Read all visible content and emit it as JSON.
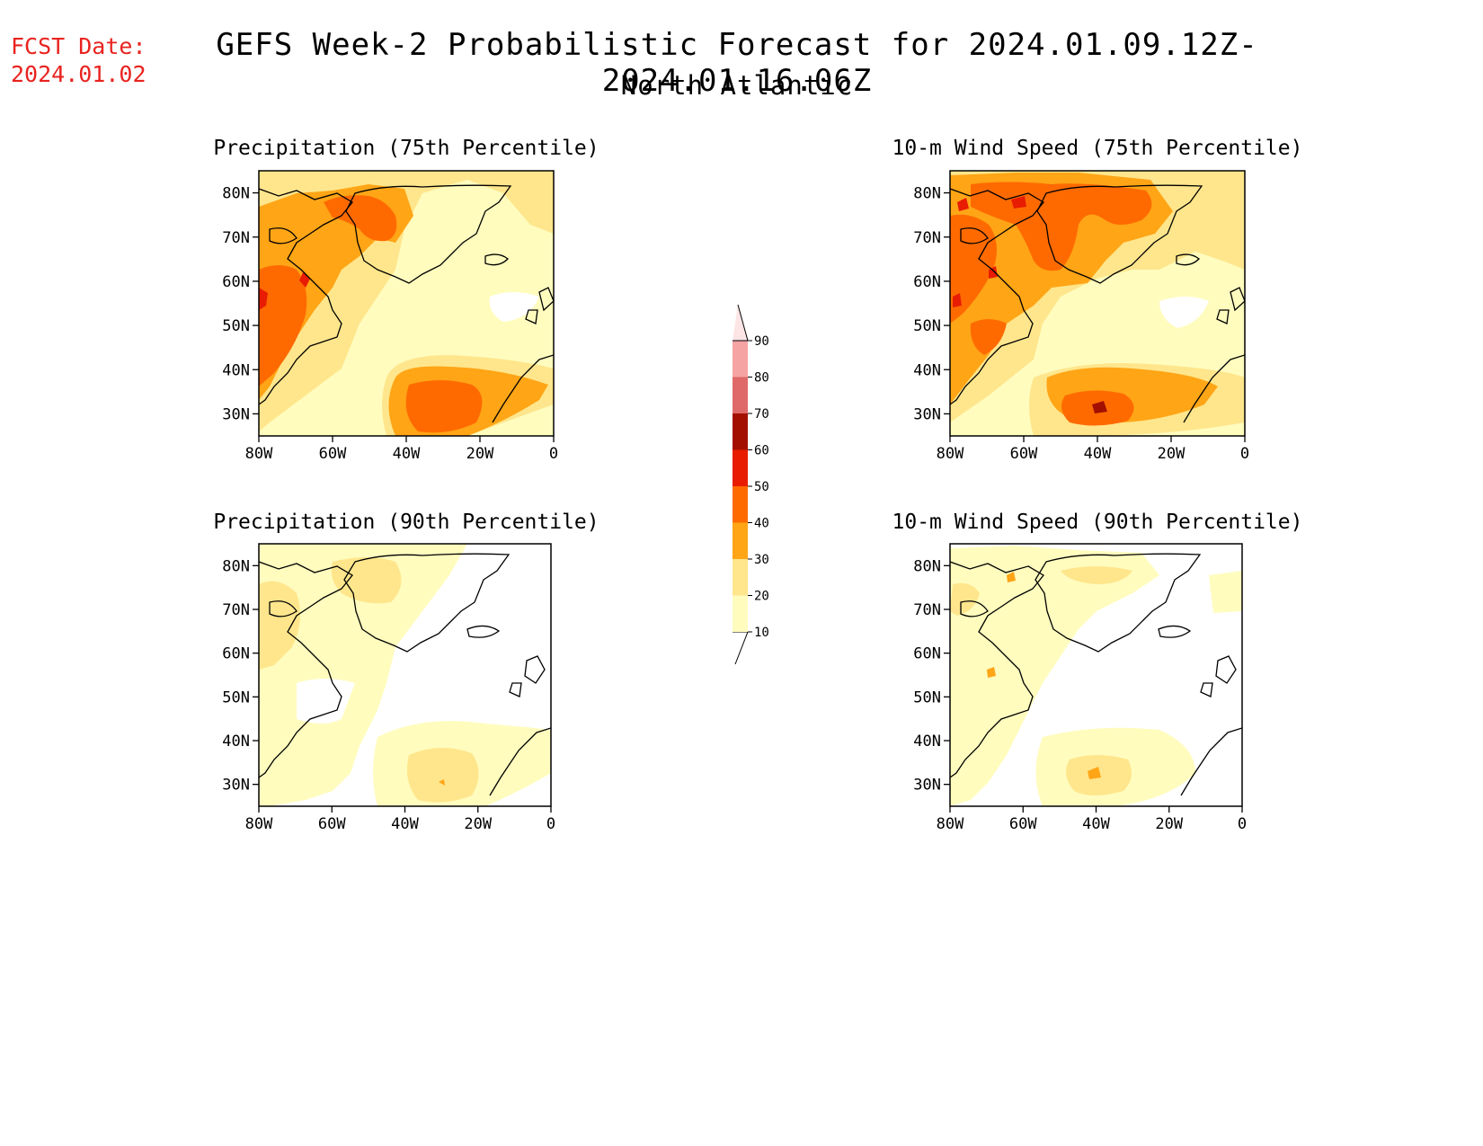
{
  "header": {
    "fcst_label": "FCST Date:",
    "fcst_date": "2024.01.02",
    "title": "GEFS Week-2 Probabilistic Forecast for 2024.01.09.12Z-2024.01.16.06Z",
    "subtitle": "North Atlantic"
  },
  "panels": [
    {
      "id": "precip-75",
      "title": "Precipitation (75th Percentile)"
    },
    {
      "id": "wind-75",
      "title": "10-m Wind Speed (75th Percentile)"
    },
    {
      "id": "precip-90",
      "title": "Precipitation (90th Percentile)"
    },
    {
      "id": "wind-90",
      "title": "10-m Wind Speed (90th Percentile)"
    }
  ],
  "axes": {
    "lat_labels": [
      "80N",
      "70N",
      "60N",
      "50N",
      "40N",
      "30N"
    ],
    "lon_labels": [
      "80W",
      "60W",
      "40W",
      "20W",
      "0"
    ]
  },
  "colorbar": {
    "levels": [
      "10",
      "20",
      "30",
      "40",
      "50",
      "60",
      "70",
      "80",
      "90"
    ],
    "colors": [
      "#fffcbe",
      "#ffe68c",
      "#ffa516",
      "#ff6a00",
      "#e81c00",
      "#a30f00",
      "#df6868",
      "#f5a3a3",
      "#fde5e5"
    ]
  }
}
